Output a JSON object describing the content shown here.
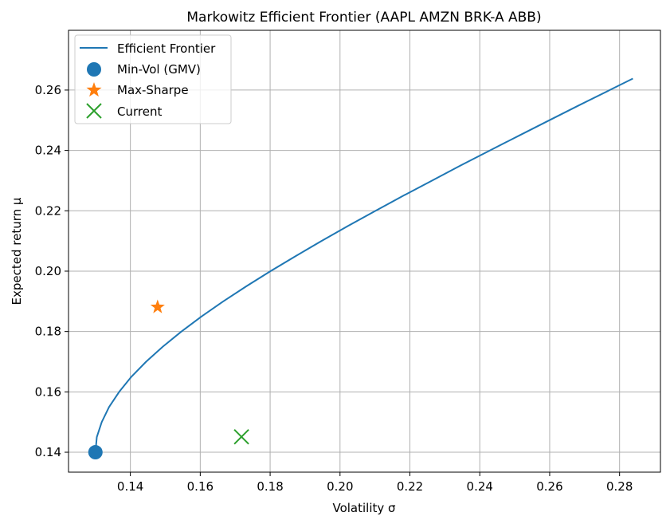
{
  "chart_data": {
    "type": "line",
    "title": "Markowitz Efficient Frontier (AAPL AMZN BRK-A ABB)",
    "xlabel": "Volatility  σ",
    "ylabel": "Expected return  μ",
    "xlim": [
      0.1223,
      0.2917
    ],
    "ylim": [
      0.1334,
      0.2798
    ],
    "xticks": [
      0.14,
      0.16,
      0.18,
      0.2,
      0.22,
      0.24,
      0.26,
      0.28
    ],
    "yticks": [
      0.14,
      0.16,
      0.18,
      0.2,
      0.22,
      0.24,
      0.26
    ],
    "xtick_labels": [
      "0.14",
      "0.16",
      "0.18",
      "0.20",
      "0.22",
      "0.24",
      "0.26",
      "0.28"
    ],
    "ytick_labels": [
      "0.14",
      "0.16",
      "0.18",
      "0.20",
      "0.22",
      "0.24",
      "0.26"
    ],
    "grid": true,
    "legend_position": "top-left",
    "series": [
      {
        "name": "Efficient Frontier",
        "kind": "line",
        "color": "#1f77b4",
        "x": [
          0.13,
          0.1304,
          0.1318,
          0.1339,
          0.1368,
          0.1403,
          0.1445,
          0.1493,
          0.1546,
          0.1604,
          0.1666,
          0.1732,
          0.1801,
          0.1873,
          0.1947,
          0.2023,
          0.2102,
          0.2181,
          0.2263,
          0.2345,
          0.2429,
          0.2514,
          0.2599,
          0.2685,
          0.2772,
          0.2838
        ],
        "y": [
          0.14,
          0.145,
          0.15,
          0.155,
          0.16,
          0.165,
          0.17,
          0.175,
          0.18,
          0.185,
          0.19,
          0.195,
          0.2,
          0.205,
          0.21,
          0.215,
          0.22,
          0.225,
          0.23,
          0.235,
          0.24,
          0.245,
          0.25,
          0.255,
          0.26,
          0.2638
        ]
      },
      {
        "name": "Min-Vol (GMV)",
        "kind": "marker",
        "marker": "circle",
        "color": "#1f77b4",
        "x": [
          0.13
        ],
        "y": [
          0.14
        ]
      },
      {
        "name": "Max-Sharpe",
        "kind": "marker",
        "marker": "star",
        "color": "#ff7f0e",
        "x": [
          0.1478
        ],
        "y": [
          0.1881
        ]
      },
      {
        "name": "Current",
        "kind": "marker",
        "marker": "x",
        "color": "#2ca02c",
        "x": [
          0.1718
        ],
        "y": [
          0.1451
        ]
      }
    ]
  }
}
